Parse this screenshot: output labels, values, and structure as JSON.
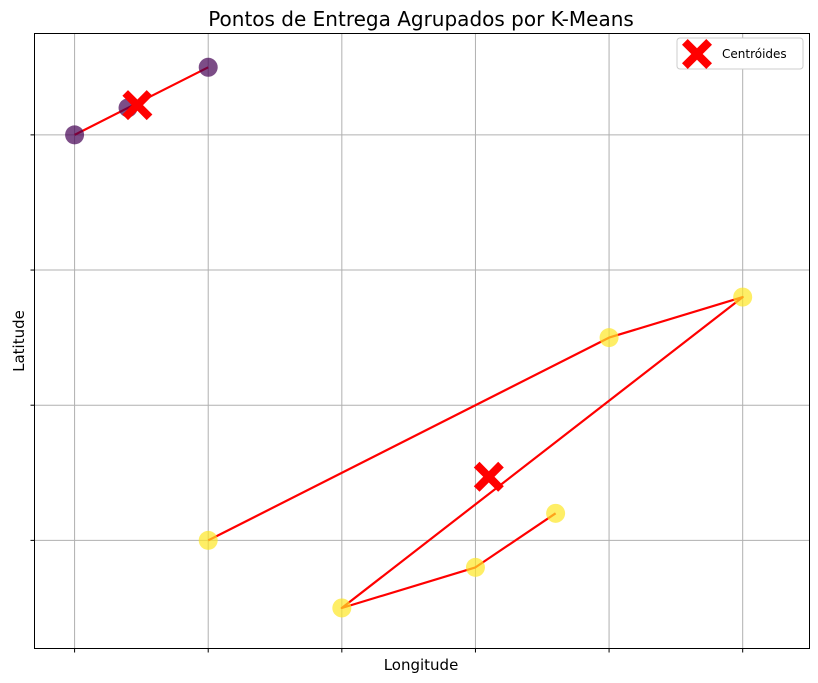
{
  "chart_data": {
    "type": "scatter",
    "title": "Pontos de Entrega Agrupados por K-Means",
    "xlabel": "Longitude",
    "ylabel": "Latitude",
    "xlim": [
      -0.3,
      5.5
    ],
    "ylim": [
      -0.8,
      3.75
    ],
    "xgrid": [
      0,
      1,
      2,
      3,
      4,
      5
    ],
    "ygrid": [
      0,
      1,
      2,
      3
    ],
    "grid": true,
    "tick_labels_visible": false,
    "legend_position": "top-right",
    "legend": [
      {
        "label": "Centróides",
        "marker": "X",
        "color": "#ff0000"
      }
    ],
    "clusters": [
      {
        "color": "#440154",
        "points": [
          [
            0,
            3
          ],
          [
            0.4,
            3.2
          ],
          [
            1,
            3.5
          ]
        ],
        "path": [
          [
            0,
            3
          ],
          [
            0.4,
            3.2
          ],
          [
            1,
            3.5
          ]
        ]
      },
      {
        "color": "#fde725",
        "points": [
          [
            1,
            0
          ],
          [
            2,
            -0.5
          ],
          [
            3,
            -0.2
          ],
          [
            3.6,
            0.2
          ],
          [
            4,
            1.5
          ],
          [
            5,
            1.8
          ]
        ],
        "path": [
          [
            1,
            0
          ],
          [
            4,
            1.5
          ],
          [
            5,
            1.8
          ],
          [
            2,
            -0.5
          ],
          [
            3,
            -0.2
          ],
          [
            3.6,
            0.2
          ]
        ]
      }
    ],
    "centroids": [
      {
        "x": 0.47,
        "y": 3.22,
        "color": "#ff0000"
      },
      {
        "x": 3.1,
        "y": 0.47,
        "color": "#ff0000"
      }
    ]
  }
}
